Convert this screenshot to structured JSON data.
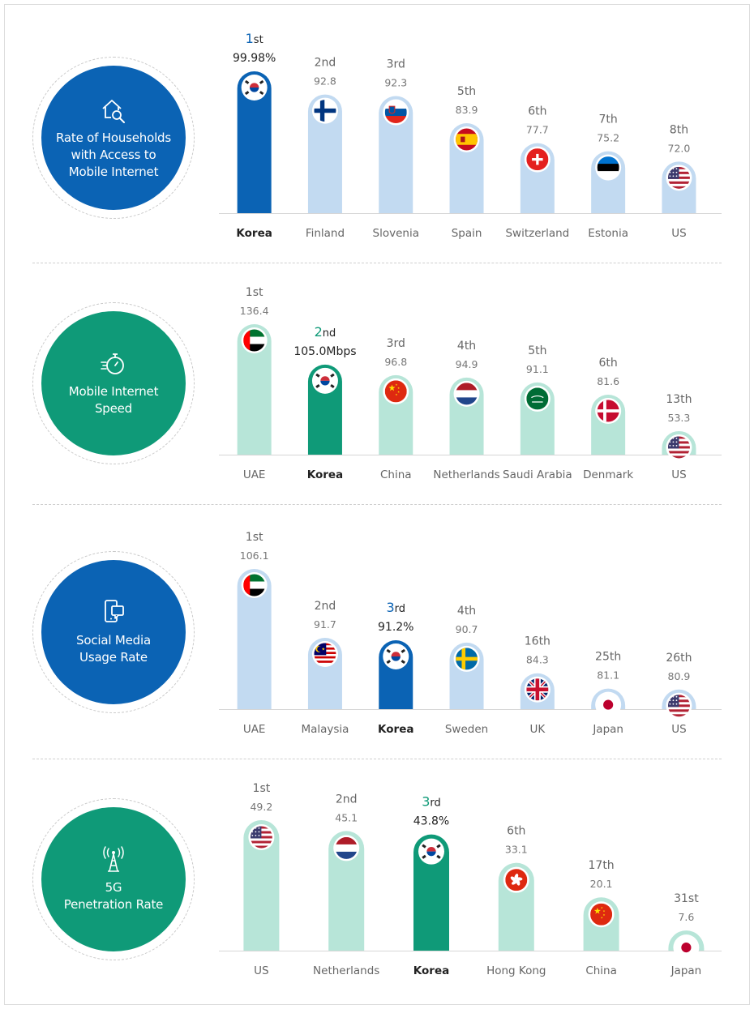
{
  "colors": {
    "blue_dark": "#0b63b4",
    "blue_light": "#c2daf1",
    "green_dark": "#0f9a78",
    "green_light": "#b7e5d8",
    "text": "#555555",
    "text_dark": "#222222"
  },
  "panels": [
    {
      "id": "households",
      "title": "Rate of Households\nwith Access to\nMobile Internet",
      "icon": "house-search-icon",
      "theme": "blue"
    },
    {
      "id": "speed",
      "title": "Mobile Internet\nSpeed",
      "icon": "stopwatch-icon",
      "theme": "green"
    },
    {
      "id": "social",
      "title": "Social Media\nUsage Rate",
      "icon": "devices-icon",
      "theme": "blue"
    },
    {
      "id": "fiveg",
      "title": "5G\nPenetration Rate",
      "icon": "antenna-tower-icon",
      "theme": "green"
    }
  ],
  "chart_data": [
    {
      "type": "bar",
      "title": "Rate of Households with Access to Mobile Internet",
      "categories": [
        "Korea",
        "Finland",
        "Slovenia",
        "Spain",
        "Switzerland",
        "Estonia",
        "US"
      ],
      "ranks": [
        "1st",
        "2nd",
        "3rd",
        "5th",
        "6th",
        "7th",
        "8th"
      ],
      "value_labels": [
        "99.98%",
        "92.8",
        "92.3",
        "83.9",
        "77.7",
        "75.2",
        "72.0"
      ],
      "values": [
        99.98,
        92.8,
        92.3,
        83.9,
        77.7,
        75.2,
        72.0
      ],
      "flags": [
        "kr",
        "fi",
        "si",
        "es",
        "ch",
        "ee",
        "us"
      ],
      "highlight": 0
    },
    {
      "type": "bar",
      "title": "Mobile Internet Speed",
      "categories": [
        "UAE",
        "Korea",
        "China",
        "Netherlands",
        "Saudi Arabia",
        "Denmark",
        "US"
      ],
      "ranks": [
        "1st",
        "2nd",
        "3rd",
        "4th",
        "5th",
        "6th",
        "13th"
      ],
      "value_labels": [
        "136.4",
        "105.0Mbps",
        "96.8",
        "94.9",
        "91.1",
        "81.6",
        "53.3"
      ],
      "values": [
        136.4,
        105.0,
        96.8,
        94.9,
        91.1,
        81.6,
        53.3
      ],
      "flags": [
        "ae",
        "kr",
        "cn",
        "nl",
        "sa",
        "dk",
        "us"
      ],
      "highlight": 1
    },
    {
      "type": "bar",
      "title": "Social Media Usage Rate",
      "categories": [
        "UAE",
        "Malaysia",
        "Korea",
        "Sweden",
        "UK",
        "Japan",
        "US"
      ],
      "ranks": [
        "1st",
        "2nd",
        "3rd",
        "4th",
        "16th",
        "25th",
        "26th"
      ],
      "value_labels": [
        "106.1",
        "91.7",
        "91.2%",
        "90.7",
        "84.3",
        "81.1",
        "80.9"
      ],
      "values": [
        106.1,
        91.7,
        91.2,
        90.7,
        84.3,
        81.1,
        80.9
      ],
      "flags": [
        "ae",
        "my",
        "kr",
        "se",
        "uk",
        "jp",
        "us"
      ],
      "highlight": 2
    },
    {
      "type": "bar",
      "title": "5G Penetration Rate",
      "categories": [
        "US",
        "Netherlands",
        "Korea",
        "Hong Kong",
        "China",
        "Japan"
      ],
      "ranks": [
        "1st",
        "2nd",
        "3rd",
        "6th",
        "17th",
        "31st"
      ],
      "value_labels": [
        "49.2",
        "45.1",
        "43.8%",
        "33.1",
        "20.1",
        "7.6"
      ],
      "values": [
        49.2,
        45.1,
        43.8,
        33.1,
        20.1,
        7.6
      ],
      "flags": [
        "us",
        "nl",
        "kr",
        "hk",
        "cn",
        "jp"
      ],
      "highlight": 2
    }
  ]
}
